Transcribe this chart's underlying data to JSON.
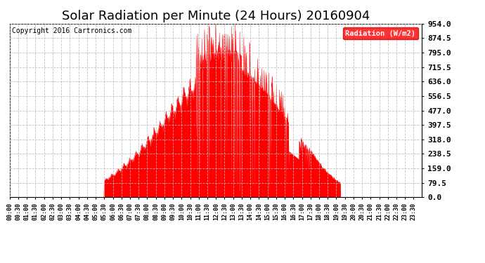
{
  "title": "Solar Radiation per Minute (24 Hours) 20160904",
  "copyright_text": "Copyright 2016 Cartronics.com",
  "legend_label": "Radiation (W/m2)",
  "ylabel_values": [
    0.0,
    79.5,
    159.0,
    238.5,
    318.0,
    397.5,
    477.0,
    556.5,
    636.0,
    715.5,
    795.0,
    874.5,
    954.0
  ],
  "ymax": 954.0,
  "fill_color": "#ff0000",
  "line_color": "#ff0000",
  "background_color": "#ffffff",
  "grid_color": "#bbbbbb",
  "legend_bg": "#ff0000",
  "legend_text_color": "#ffffff",
  "title_fontsize": 13,
  "copyright_fontsize": 7,
  "tick_fontsize": 6,
  "ytick_fontsize": 8,
  "total_minutes": 1440,
  "x_tick_interval_minutes": 30,
  "sunrise_min": 330,
  "sunset_min": 1155,
  "solar_noon_min": 750
}
